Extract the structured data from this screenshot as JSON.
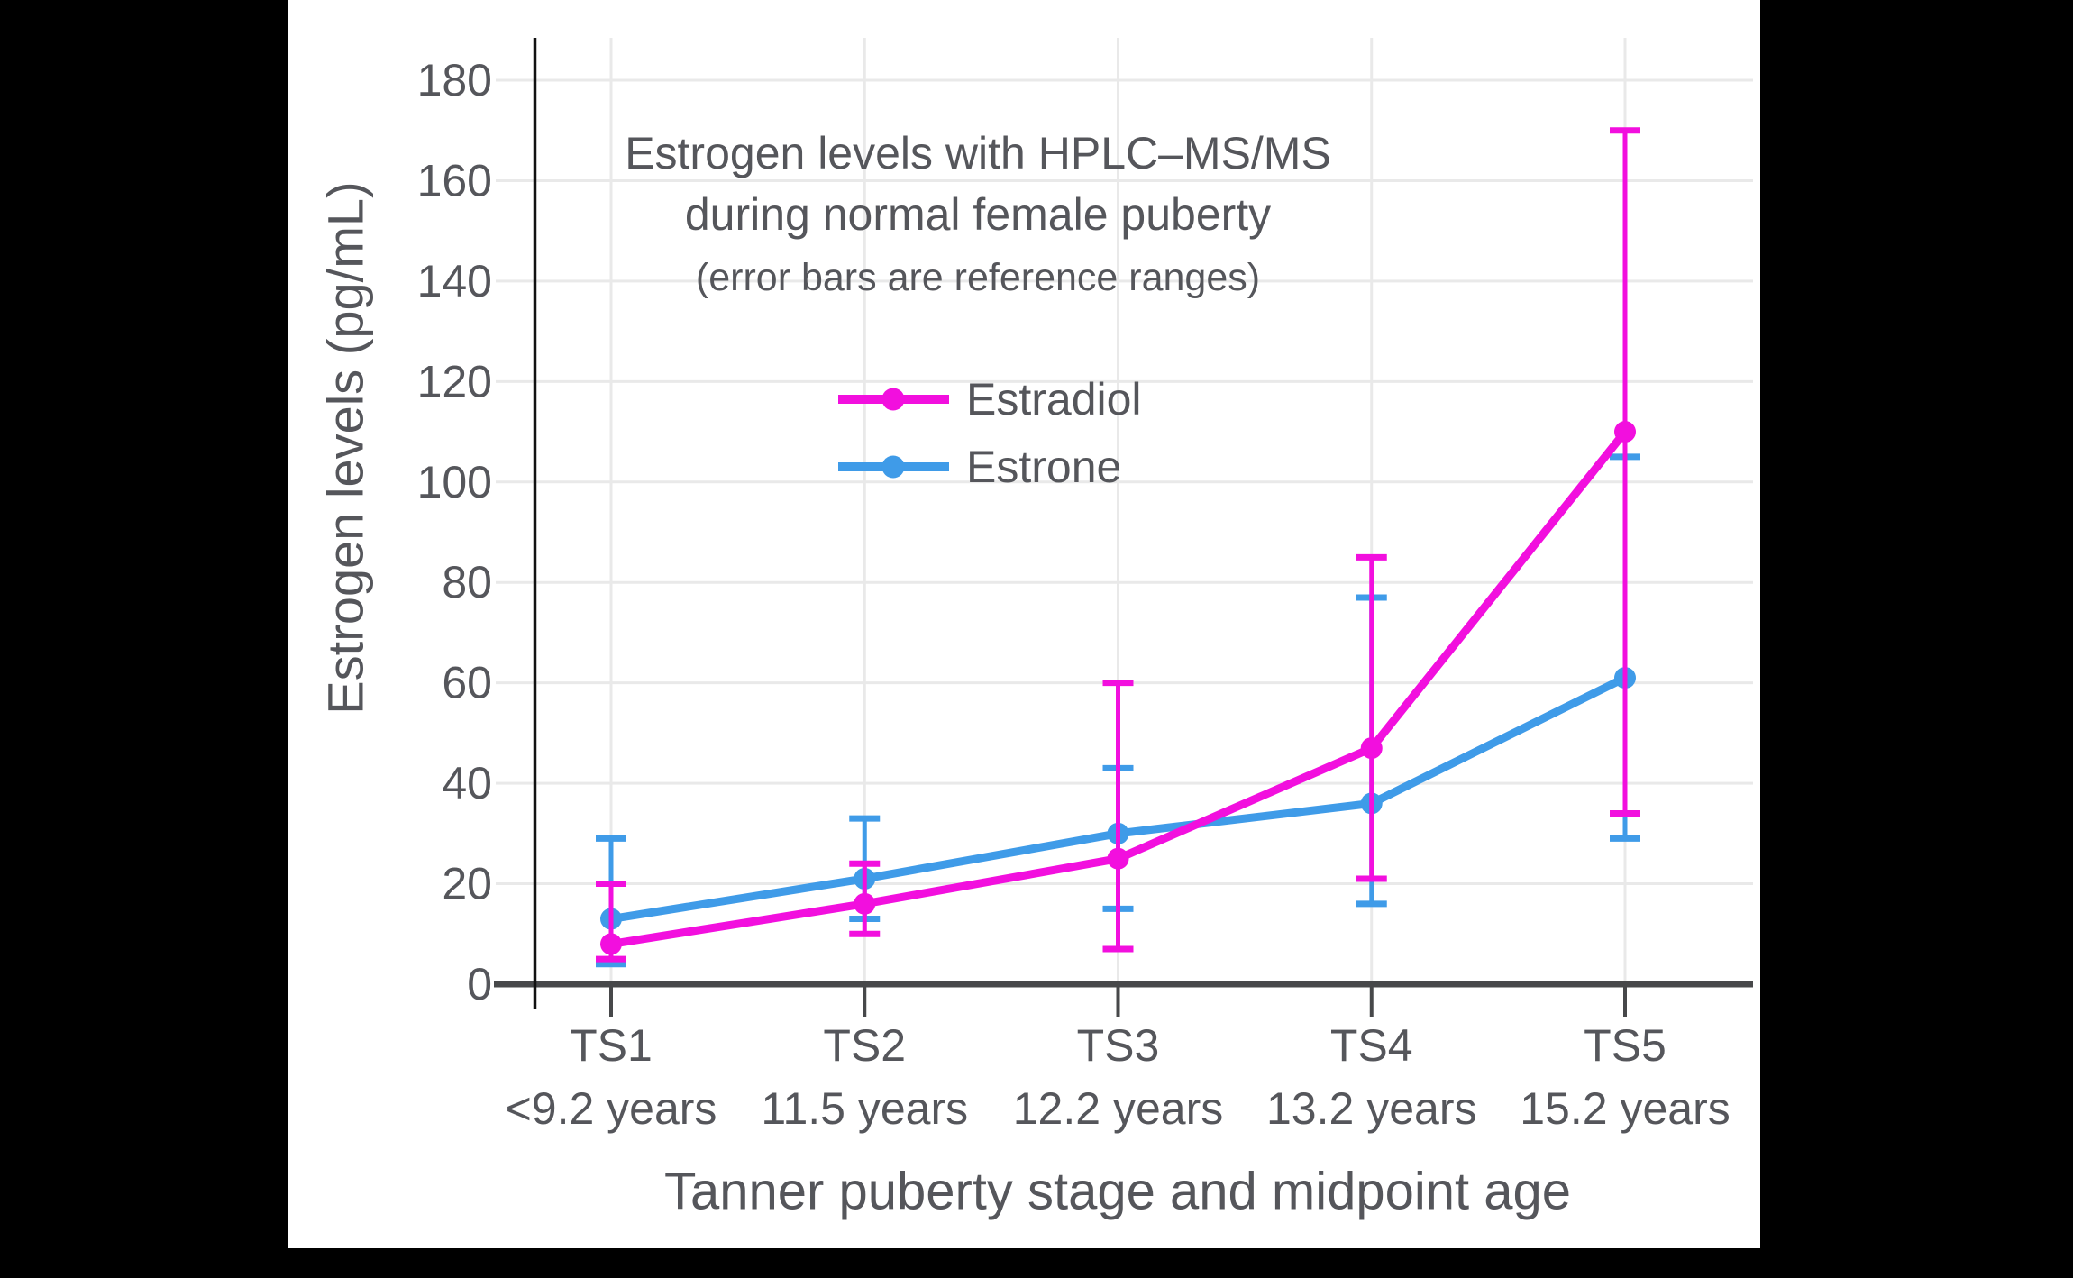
{
  "window": {
    "background_color": "#000000",
    "panel_color": "#FFFFFF"
  },
  "colors": {
    "estradiol": "#F20FDE",
    "estrone": "#3F9BE8",
    "text": "#55565B",
    "gridline": "#E9E9E9",
    "axis_line": "#47484A",
    "spine": "#111111"
  },
  "chart_data": {
    "type": "line",
    "title_line1": "Estrogen levels with HPLC–MS/MS",
    "title_line2": "during normal female puberty",
    "subtitle": "(error bars are reference ranges)",
    "xlabel": "Tanner puberty stage and midpoint age",
    "ylabel": "Estrogen levels (pg/mL)",
    "categories": [
      "TS1",
      "TS2",
      "TS3",
      "TS4",
      "TS5"
    ],
    "category_ages": [
      "<9.2 years",
      "11.5 years",
      "12.2 years",
      "13.2 years",
      "15.2 years"
    ],
    "yticks": [
      0,
      20,
      40,
      60,
      80,
      100,
      120,
      140,
      160,
      180
    ],
    "ylim": [
      0,
      190
    ],
    "grid": true,
    "error_bars": true,
    "legend_position": "upper-middle",
    "legend_entries": [
      "Estradiol",
      "Estrone"
    ],
    "series": [
      {
        "name": "Estradiol",
        "color": "#F20FDE",
        "values": [
          8,
          16,
          25,
          47,
          110
        ],
        "error_low": [
          5,
          10,
          7,
          21,
          34
        ],
        "error_high": [
          20,
          24,
          60,
          85,
          170
        ]
      },
      {
        "name": "Estrone",
        "color": "#3F9BE8",
        "values": [
          13,
          21,
          30,
          36,
          61
        ],
        "error_low": [
          4,
          13,
          15,
          16,
          29
        ],
        "error_high": [
          29,
          33,
          43,
          77,
          105
        ]
      }
    ]
  }
}
